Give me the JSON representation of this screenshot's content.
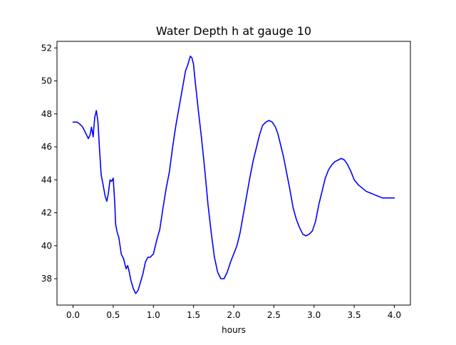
{
  "chart_data": {
    "type": "line",
    "title": "Water Depth h at gauge 10",
    "xlabel": "hours",
    "ylabel": "",
    "xlim": [
      -0.2,
      4.2
    ],
    "ylim": [
      36.4,
      52.4
    ],
    "xticks": [
      0.0,
      0.5,
      1.0,
      1.5,
      2.0,
      2.5,
      3.0,
      3.5,
      4.0
    ],
    "xtick_labels": [
      "0.0",
      "0.5",
      "1.0",
      "1.5",
      "2.0",
      "2.5",
      "3.0",
      "3.5",
      "4.0"
    ],
    "yticks": [
      38,
      40,
      42,
      44,
      46,
      48,
      50,
      52
    ],
    "ytick_labels": [
      "38",
      "40",
      "42",
      "44",
      "46",
      "48",
      "50",
      "52"
    ],
    "grid": false,
    "legend": "none",
    "line_color": "#0000ff",
    "series": [
      {
        "x": [
          0.0,
          0.05,
          0.08,
          0.12,
          0.16,
          0.19,
          0.21,
          0.23,
          0.25,
          0.27,
          0.29,
          0.31,
          0.33,
          0.35,
          0.37,
          0.4,
          0.42,
          0.44,
          0.46,
          0.48,
          0.5,
          0.52,
          0.53,
          0.55,
          0.57,
          0.6,
          0.63,
          0.66,
          0.68,
          0.7,
          0.72,
          0.75,
          0.78,
          0.81,
          0.84,
          0.87,
          0.9,
          0.93,
          0.96,
          1.0,
          1.04,
          1.08,
          1.12,
          1.16,
          1.2,
          1.24,
          1.28,
          1.32,
          1.36,
          1.4,
          1.43,
          1.46,
          1.48,
          1.5,
          1.52,
          1.56,
          1.6,
          1.64,
          1.68,
          1.72,
          1.76,
          1.8,
          1.84,
          1.88,
          1.92,
          1.96,
          2.0,
          2.04,
          2.08,
          2.12,
          2.16,
          2.2,
          2.24,
          2.28,
          2.32,
          2.36,
          2.4,
          2.44,
          2.48,
          2.52,
          2.55,
          2.58,
          2.62,
          2.66,
          2.7,
          2.74,
          2.78,
          2.82,
          2.86,
          2.9,
          2.94,
          2.98,
          3.02,
          3.06,
          3.1,
          3.14,
          3.18,
          3.22,
          3.26,
          3.3,
          3.34,
          3.38,
          3.42,
          3.46,
          3.5,
          3.55,
          3.6,
          3.65,
          3.7,
          3.75,
          3.8,
          3.85,
          3.9,
          3.95,
          4.0
        ],
        "y": [
          47.5,
          47.5,
          47.4,
          47.2,
          46.8,
          46.5,
          46.7,
          47.2,
          46.6,
          47.8,
          48.2,
          47.5,
          45.8,
          44.3,
          43.8,
          43.0,
          42.7,
          43.2,
          44.0,
          43.9,
          44.1,
          42.5,
          41.3,
          40.8,
          40.5,
          39.5,
          39.2,
          38.6,
          38.8,
          38.4,
          37.9,
          37.4,
          37.1,
          37.3,
          37.8,
          38.3,
          39.0,
          39.3,
          39.3,
          39.5,
          40.3,
          41.0,
          42.3,
          43.5,
          44.5,
          46.0,
          47.3,
          48.4,
          49.5,
          50.6,
          51.0,
          51.5,
          51.4,
          51.0,
          50.0,
          48.2,
          46.5,
          44.6,
          42.5,
          40.8,
          39.3,
          38.4,
          38.0,
          38.0,
          38.4,
          39.0,
          39.5,
          40.0,
          40.8,
          41.9,
          43.0,
          44.1,
          45.1,
          45.9,
          46.7,
          47.3,
          47.5,
          47.6,
          47.5,
          47.2,
          46.8,
          46.2,
          45.4,
          44.4,
          43.4,
          42.3,
          41.6,
          41.1,
          40.7,
          40.6,
          40.7,
          40.9,
          41.5,
          42.5,
          43.3,
          44.1,
          44.6,
          44.9,
          45.1,
          45.2,
          45.3,
          45.2,
          44.9,
          44.5,
          44.0,
          43.7,
          43.5,
          43.3,
          43.2,
          43.1,
          43.0,
          42.9,
          42.9,
          42.9,
          42.9
        ]
      }
    ]
  }
}
